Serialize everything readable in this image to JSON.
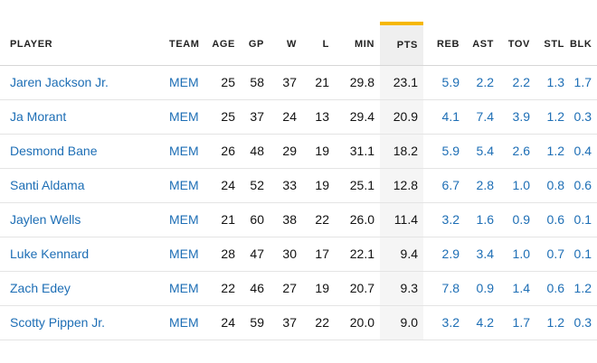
{
  "table": {
    "columns": [
      {
        "key": "player",
        "label": "PLAYER"
      },
      {
        "key": "team",
        "label": "TEAM"
      },
      {
        "key": "age",
        "label": "AGE"
      },
      {
        "key": "gp",
        "label": "GP"
      },
      {
        "key": "w",
        "label": "W"
      },
      {
        "key": "l",
        "label": "L"
      },
      {
        "key": "min",
        "label": "MIN"
      },
      {
        "key": "pts",
        "label": "PTS"
      },
      {
        "key": "reb",
        "label": "REB"
      },
      {
        "key": "ast",
        "label": "AST"
      },
      {
        "key": "tov",
        "label": "TOV"
      },
      {
        "key": "stl",
        "label": "STL"
      },
      {
        "key": "blk",
        "label": "BLK"
      }
    ],
    "sorted_column": "pts",
    "colors": {
      "link": "#1d6eb5",
      "sort_indicator": "#f5b700",
      "sorted_bg": "#efefef"
    },
    "rows": [
      {
        "player": "Jaren Jackson Jr.",
        "team": "MEM",
        "age": "25",
        "gp": "58",
        "w": "37",
        "l": "21",
        "min": "29.8",
        "pts": "23.1",
        "reb": "5.9",
        "ast": "2.2",
        "tov": "2.2",
        "stl": "1.3",
        "blk": "1.7"
      },
      {
        "player": "Ja Morant",
        "team": "MEM",
        "age": "25",
        "gp": "37",
        "w": "24",
        "l": "13",
        "min": "29.4",
        "pts": "20.9",
        "reb": "4.1",
        "ast": "7.4",
        "tov": "3.9",
        "stl": "1.2",
        "blk": "0.3"
      },
      {
        "player": "Desmond Bane",
        "team": "MEM",
        "age": "26",
        "gp": "48",
        "w": "29",
        "l": "19",
        "min": "31.1",
        "pts": "18.2",
        "reb": "5.9",
        "ast": "5.4",
        "tov": "2.6",
        "stl": "1.2",
        "blk": "0.4"
      },
      {
        "player": "Santi Aldama",
        "team": "MEM",
        "age": "24",
        "gp": "52",
        "w": "33",
        "l": "19",
        "min": "25.1",
        "pts": "12.8",
        "reb": "6.7",
        "ast": "2.8",
        "tov": "1.0",
        "stl": "0.8",
        "blk": "0.6"
      },
      {
        "player": "Jaylen Wells",
        "team": "MEM",
        "age": "21",
        "gp": "60",
        "w": "38",
        "l": "22",
        "min": "26.0",
        "pts": "11.4",
        "reb": "3.2",
        "ast": "1.6",
        "tov": "0.9",
        "stl": "0.6",
        "blk": "0.1"
      },
      {
        "player": "Luke Kennard",
        "team": "MEM",
        "age": "28",
        "gp": "47",
        "w": "30",
        "l": "17",
        "min": "22.1",
        "pts": "9.4",
        "reb": "2.9",
        "ast": "3.4",
        "tov": "1.0",
        "stl": "0.7",
        "blk": "0.1"
      },
      {
        "player": "Zach Edey",
        "team": "MEM",
        "age": "22",
        "gp": "46",
        "w": "27",
        "l": "19",
        "min": "20.7",
        "pts": "9.3",
        "reb": "7.8",
        "ast": "0.9",
        "tov": "1.4",
        "stl": "0.6",
        "blk": "1.2"
      },
      {
        "player": "Scotty Pippen Jr.",
        "team": "MEM",
        "age": "24",
        "gp": "59",
        "w": "37",
        "l": "22",
        "min": "20.0",
        "pts": "9.0",
        "reb": "3.2",
        "ast": "4.2",
        "tov": "1.7",
        "stl": "1.2",
        "blk": "0.3"
      }
    ]
  }
}
